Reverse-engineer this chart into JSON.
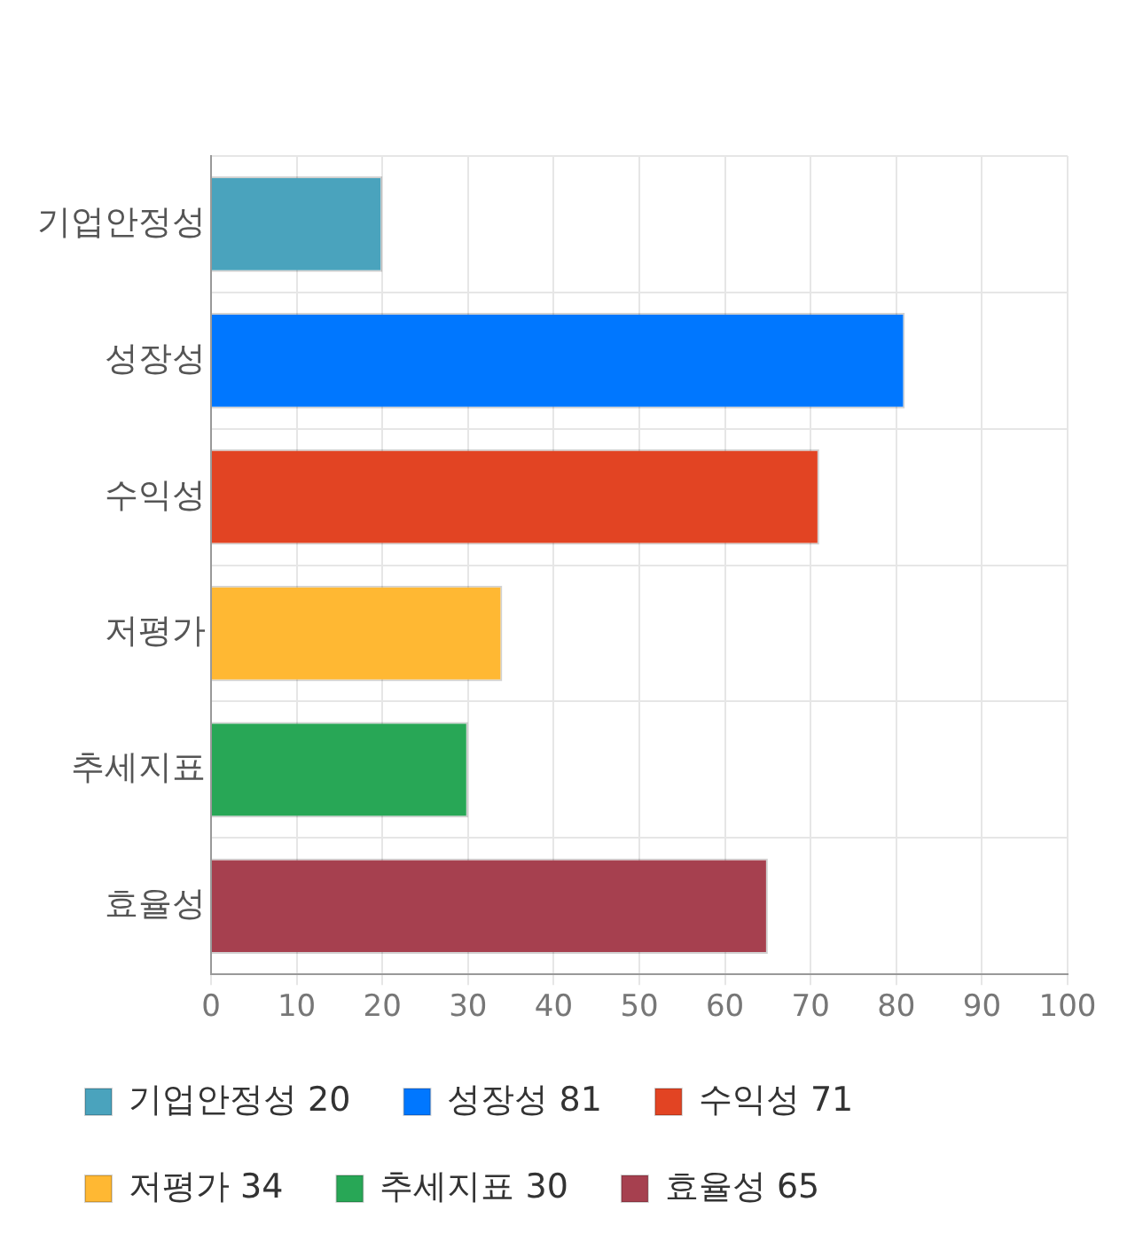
{
  "chart_data": {
    "type": "bar",
    "orientation": "horizontal",
    "stacked": true,
    "categories": [
      "기업안정성",
      "성장성",
      "수익성",
      "저평가",
      "추세지표",
      "효율성"
    ],
    "series": [
      {
        "name": "기업안정성 20",
        "color": "#4aa3bd",
        "values": [
          20,
          null,
          null,
          null,
          null,
          null
        ]
      },
      {
        "name": "성장성 81",
        "color": "#0077ff",
        "values": [
          null,
          81,
          null,
          null,
          null,
          null
        ]
      },
      {
        "name": "수익성 71",
        "color": "#e24423",
        "values": [
          null,
          null,
          71,
          null,
          null,
          null
        ]
      },
      {
        "name": "저평가 34",
        "color": "#ffb833",
        "values": [
          null,
          null,
          null,
          34,
          null,
          null
        ]
      },
      {
        "name": "추세지표 30",
        "color": "#28a756",
        "values": [
          null,
          null,
          null,
          null,
          30,
          null
        ]
      },
      {
        "name": "효율성 65",
        "color": "#a6404f",
        "values": [
          null,
          null,
          null,
          null,
          null,
          65
        ]
      }
    ],
    "xlim": [
      0,
      100
    ],
    "xticks": [
      0,
      10,
      20,
      30,
      40,
      50,
      60,
      70,
      80,
      90,
      100
    ],
    "grid": true,
    "legend": "bottom"
  }
}
